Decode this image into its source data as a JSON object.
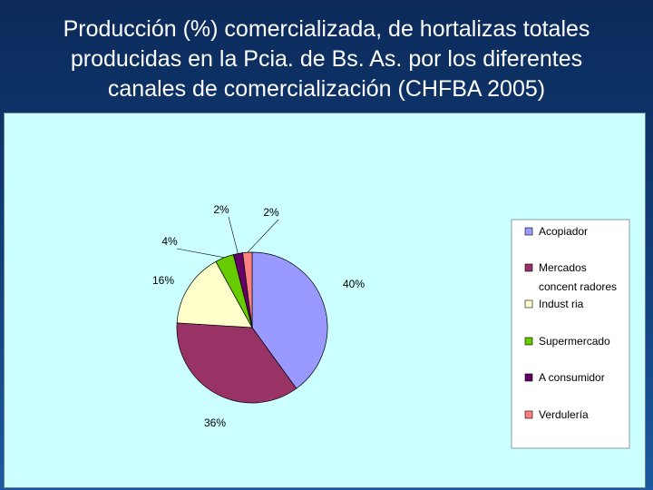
{
  "title_lines": [
    "Producción (%) comercializada, de hortalizas totales",
    "producidas en la Pcia. de Bs. As. por los diferentes",
    "canales de comercialización (CHFBA 2005)"
  ],
  "chart_data": {
    "type": "pie",
    "title": "Producción (%) comercializada, de hortalizas totales producidas en la Pcia. de Bs. As. por los diferentes canales de comercialización (CHFBA 2005)",
    "legend_position": "right",
    "categories": [
      "Acopiador",
      "Mercados concentradores",
      "Industria",
      "Supermercado",
      "A consumidor",
      "Verdulería"
    ],
    "legend_lines": [
      [
        "Acopiador"
      ],
      [
        "Mercados",
        "concent radores"
      ],
      [
        "Indust ria"
      ],
      [
        "Supermercado"
      ],
      [
        "A consumidor"
      ],
      [
        "Verdulería"
      ]
    ],
    "values": [
      40,
      36,
      16,
      4,
      2,
      2
    ],
    "labels": [
      "40%",
      "36%",
      "16%",
      "4%",
      "2%",
      "2%"
    ],
    "colors": [
      "#9999ff",
      "#993366",
      "#ffffcc",
      "#66cc00",
      "#660066",
      "#ff8080"
    ]
  }
}
